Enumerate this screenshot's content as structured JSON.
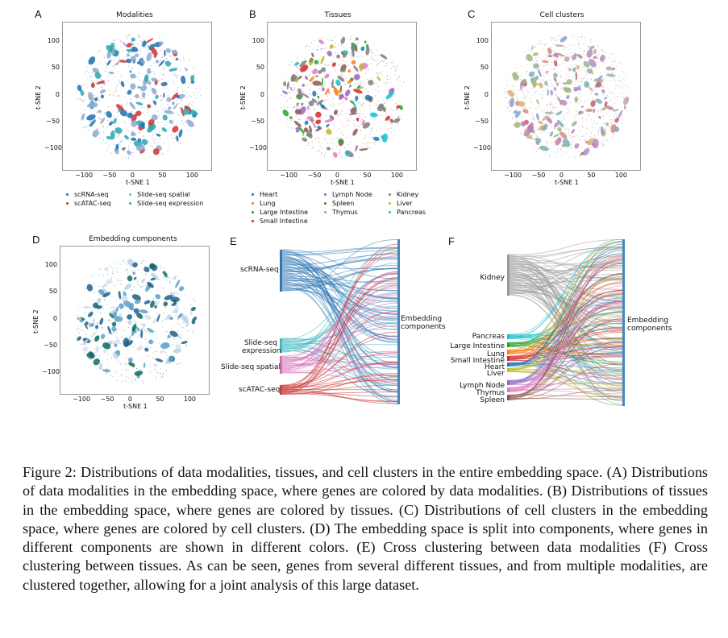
{
  "panels": {
    "A": {
      "letter": "A",
      "title": "Modalities",
      "legend": [
        {
          "label": "scRNA-seq",
          "color": "#1f6fae"
        },
        {
          "label": "Slide-seq spatial",
          "color": "#8fa8cf"
        },
        {
          "label": "scATAC-seq",
          "color": "#d03030"
        },
        {
          "label": "Slide-seq expression",
          "color": "#2aa7b0"
        }
      ]
    },
    "B": {
      "letter": "B",
      "title": "Tissues",
      "legend": [
        {
          "label": "Heart",
          "color": "#1f77b4"
        },
        {
          "label": "Lymph Node",
          "color": "#9467bd"
        },
        {
          "label": "Kidney",
          "color": "#7f7f7f"
        },
        {
          "label": "Lung",
          "color": "#ff7f0e"
        },
        {
          "label": "Spleen",
          "color": "#8c564b"
        },
        {
          "label": "Liver",
          "color": "#bcbd22"
        },
        {
          "label": "Large Intestine",
          "color": "#2ca02c"
        },
        {
          "label": "Thymus",
          "color": "#e377c2"
        },
        {
          "label": "Pancreas",
          "color": "#17becf"
        },
        {
          "label": "Small Intestine",
          "color": "#d62728"
        }
      ]
    },
    "C": {
      "letter": "C",
      "title": "Cell clusters"
    },
    "D": {
      "letter": "D",
      "title": "Embedding components"
    },
    "E": {
      "letter": "E",
      "left_labels": [
        "scRNA-seq",
        "Slide-seq\nexpression",
        "Slide-seq spatial",
        "scATAC-seq"
      ],
      "right_label": "Embedding\ncomponents"
    },
    "F": {
      "letter": "F",
      "left_labels": [
        "Kidney",
        "Pancreas",
        "Large Intestine",
        "Lung",
        "Small Intestine",
        "Heart",
        "Liver",
        "Lymph Node",
        "Thymus",
        "Spleen"
      ],
      "right_label": "Embedding\ncomponents"
    }
  },
  "axes": {
    "xlabel": "t-SNE 1",
    "ylabel": "t-SNE 2",
    "xticks": [
      "−100",
      "−50",
      "0",
      "50",
      "100"
    ],
    "yticks": [
      "100",
      "50",
      "0",
      "−50",
      "−100"
    ]
  },
  "caption": "Figure 2:  Distributions of data modalities, tissues, and cell clusters in the entire embedding space. (A) Distributions of data modalities in the embedding space, where genes are colored by data modalities.  (B) Distributions of tissues in the embedding space, where genes are colored by tissues.  (C) Distributions of cell clusters in the embedding space, where genes are colored by cell clusters.  (D) The embedding space is split into components, where genes in different components are shown in different colors. (E) Cross clustering between data modalities (F) Cross clustering between tissues.  As can be seen, genes from several different tissues, and from multiple modalities, are clustered together, allowing for a joint analysis of this large dataset.",
  "colors": {
    "A": [
      "#1f6fae",
      "#8fa8cf",
      "#d03030",
      "#2aa7b0"
    ],
    "B": [
      "#7f7f7f",
      "#7f7f7f",
      "#7f7f7f",
      "#1f77b4",
      "#ff7f0e",
      "#2ca02c",
      "#d62728",
      "#9467bd",
      "#8c564b",
      "#e377c2",
      "#bcbd22",
      "#17becf"
    ],
    "C": [
      "#c9a0a0",
      "#b08fbf",
      "#d48a8a",
      "#a0b87a",
      "#c07ab0",
      "#8aa0c8",
      "#d9b07a",
      "#9ab0a0",
      "#c06070",
      "#7ab0b8"
    ],
    "D": [
      "#0e6b5f",
      "#5b9fc9",
      "#b8d1e6",
      "#d9dfea",
      "#1f5f8b"
    ]
  }
}
